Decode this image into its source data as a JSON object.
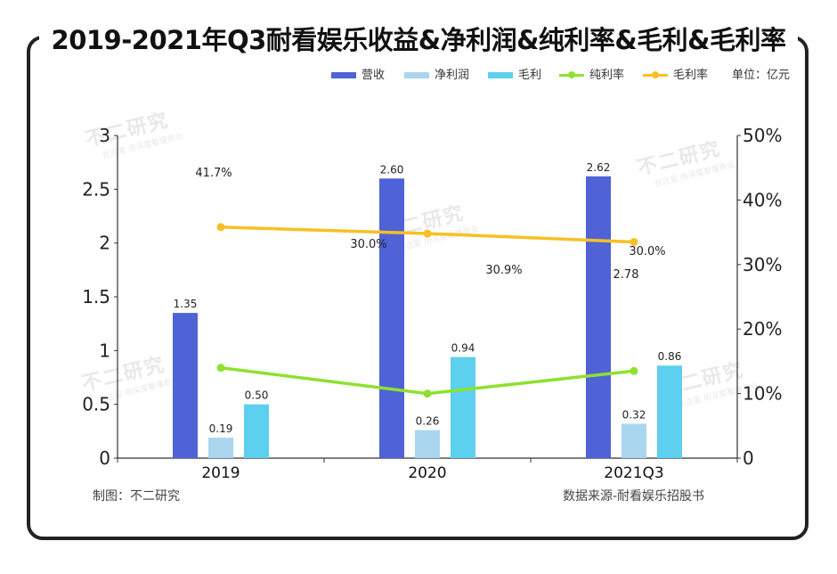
{
  "title": "2019-2021年Q3耐看娱乐收益&净利润&纯利率&毛利&毛利率",
  "legend": [
    {
      "name": "营收",
      "kind": "bar",
      "color": "#4f62d6"
    },
    {
      "name": "净利润",
      "kind": "bar",
      "color": "#a9d6ee"
    },
    {
      "name": "毛利",
      "kind": "bar",
      "color": "#5cd0ee"
    },
    {
      "name": "纯利率",
      "kind": "line",
      "color": "#8ee12f"
    },
    {
      "name": "毛利率",
      "kind": "line",
      "color": "#f7c024"
    }
  ],
  "unit_label": "单位：亿元",
  "footer": {
    "maker": "制图：不二研究",
    "source": "数据来源-耐看娱乐招股书"
  },
  "watermark": {
    "name": "不二研究",
    "slogan": "在这里 用深度看懂商业"
  },
  "chart_data": {
    "type": "bar",
    "categories": [
      "2019",
      "2020",
      "2021Q3"
    ],
    "series": [
      {
        "name": "营收",
        "axis": "left",
        "type": "bar",
        "values": [
          1.35,
          2.6,
          2.62
        ],
        "labels": [
          "1.35",
          "2.60",
          "2.62"
        ]
      },
      {
        "name": "净利润",
        "axis": "left",
        "type": "bar",
        "values": [
          0.19,
          0.26,
          0.32
        ],
        "labels": [
          "0.19",
          "0.26",
          "0.32"
        ]
      },
      {
        "name": "毛利",
        "axis": "left",
        "type": "bar",
        "values": [
          0.5,
          0.94,
          0.86
        ],
        "labels": [
          "0.50",
          "0.94",
          "0.86"
        ]
      },
      {
        "name": "纯利率",
        "axis": "right",
        "type": "line",
        "values": [
          14.0,
          10.0,
          13.5
        ]
      },
      {
        "name": "毛利率",
        "axis": "right",
        "type": "line",
        "values": [
          35.8,
          34.8,
          33.5
        ]
      }
    ],
    "left_axis": {
      "ylim": [
        0,
        3
      ],
      "ticks": [
        "0",
        "0.5",
        "1",
        "1.5",
        "2",
        "2.5",
        "3"
      ]
    },
    "right_axis": {
      "ylim": [
        0,
        50
      ],
      "ticks": [
        "0",
        "10%",
        "20%",
        "30%",
        "40%",
        "50%"
      ]
    },
    "annotations": [
      "41.7%",
      "30.0%",
      "30.9%",
      "30.0%",
      "2.78"
    ],
    "grid": false,
    "legend_position": "top-right"
  }
}
